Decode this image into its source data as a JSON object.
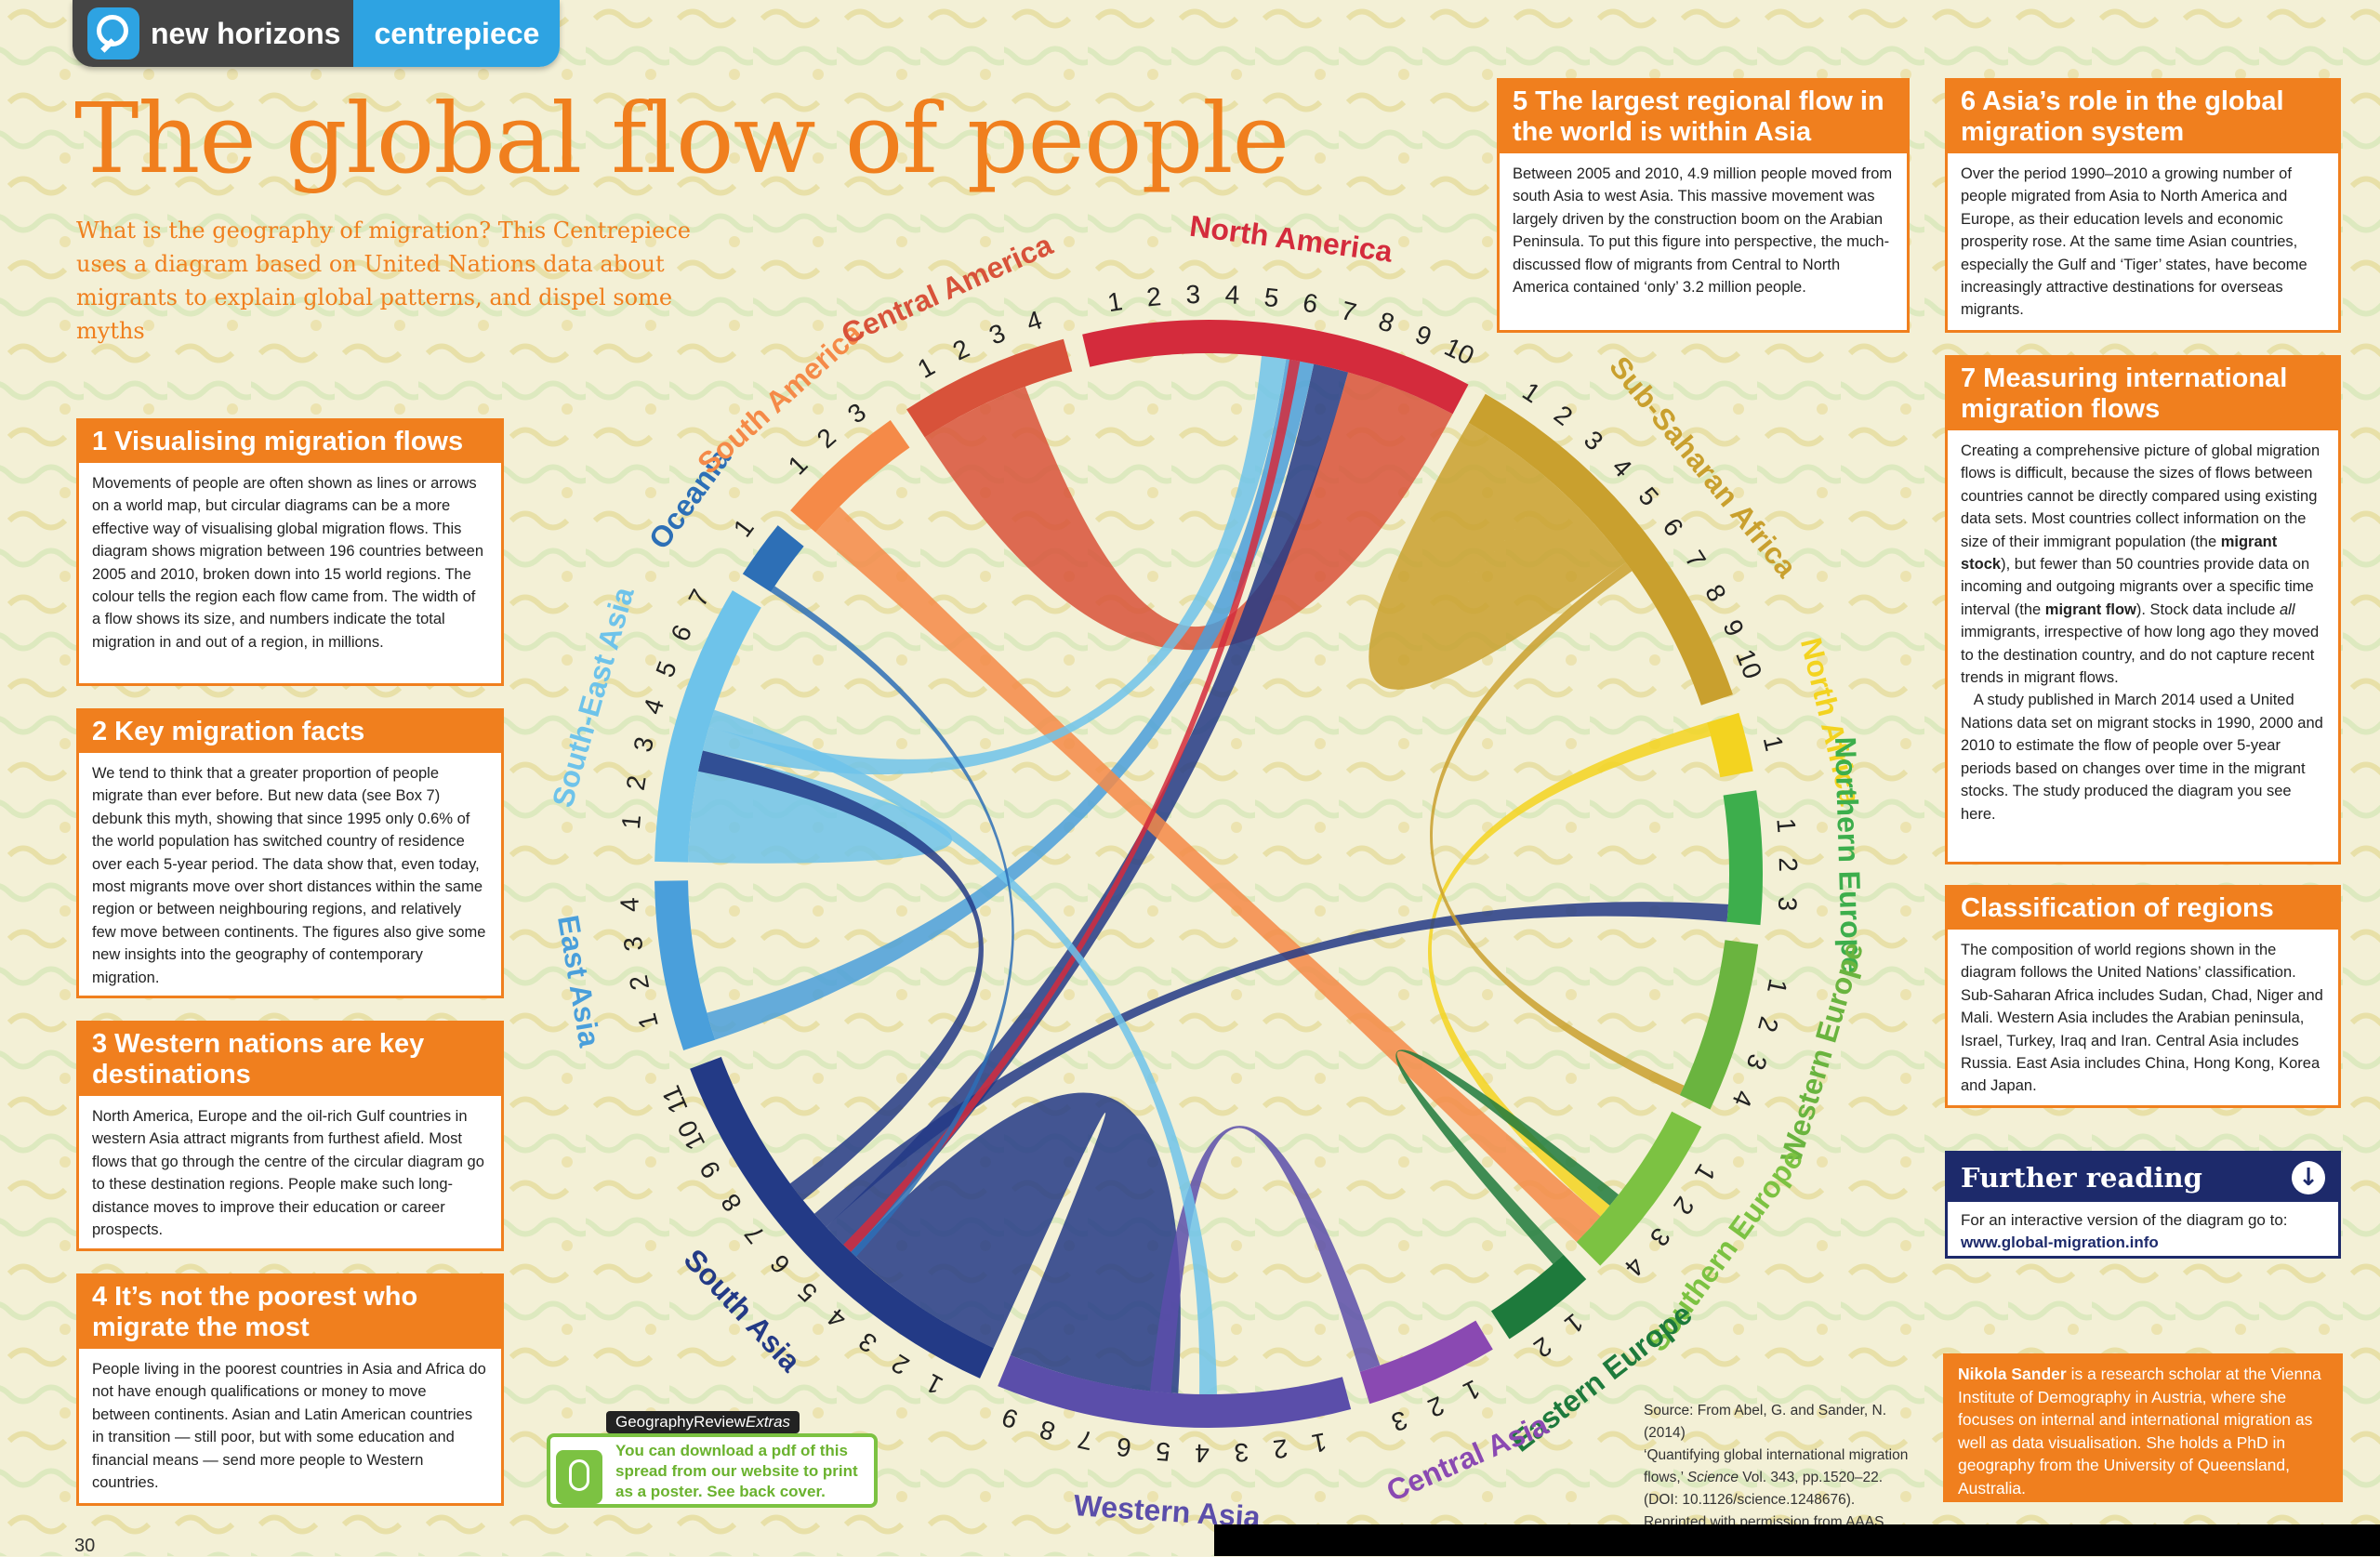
{
  "header": {
    "brand": "new horizons",
    "section": "centrepiece"
  },
  "title": "The global flow of people",
  "intro": "What is the geography of migration? This Centrepiece uses a diagram based on United Nations data about migrants to explain global patterns, and dispel some myths",
  "boxes": {
    "b1": {
      "title": "1  Visualising migration flows",
      "body": "Movements of people are often shown as lines or arrows on a world map, but circular diagrams can be a more effective way of visualising global migration flows. This diagram shows migration between 196 countries between 2005 and 2010, broken down into 15 world regions. The colour tells the region each flow came from. The width of a flow shows its size, and numbers indicate the total migration in and out of a region, in millions."
    },
    "b2": {
      "title": "2  Key migration facts",
      "body": "We tend to think that a greater proportion of people migrate than ever before. But new data (see Box 7) debunk this myth, showing that since 1995 only 0.6% of the world population has switched country of residence over each 5-year period. The data show that, even today, most migrants move over short distances within the same region or between neighbouring regions, and relatively few move between continents. The figures also give some new insights into the geography of contemporary migration."
    },
    "b3": {
      "title": "3  Western nations are key destinations",
      "body": "North America, Europe and the oil-rich Gulf countries in western Asia attract migrants from furthest afield. Most flows that go through the centre of the circular diagram go to these destination regions. People make such long-distance moves to improve their education or career prospects."
    },
    "b4": {
      "title": "4  It’s not the poorest who migrate the most",
      "body": "People living in the poorest countries in Asia and Africa do not have enough qualifications or money to move between continents. Asian and Latin American countries in transition — still poor, but with some education and financial means — send more people to Western countries."
    },
    "b5": {
      "title": "5  The largest regional flow in the world is within Asia",
      "body": "Between 2005 and 2010, 4.9 million people moved from south Asia to west Asia. This massive movement was largely driven by the construction boom on the Arabian Peninsula. To put this figure into perspective, the much-discussed flow of migrants from Central to North America contained ‘only’ 3.2 million people."
    },
    "b6": {
      "title": "6  Asia’s role in the global migration system",
      "body": "Over the period 1990–2010 a growing number of people migrated from Asia to North America and Europe, as their education levels and economic prosperity rose. At the same time Asian countries, especially the Gulf and ‘Tiger’ states, have become increasingly attractive destinations for overseas migrants."
    },
    "b7": {
      "title": "7  Measuring international migration flows",
      "p1a": "Creating a comprehensive picture of global migration flows is difficult, because the sizes of flows between countries cannot be directly compared using existing data sets. Most countries collect information on the size of their immigrant population (the ",
      "p1b": "migrant stock",
      "p1c": "), but fewer than 50 countries provide data on incoming and outgoing migrants over a specific time interval (the ",
      "p1d": "migrant flow",
      "p1e": "). Stock data include ",
      "p1f": "all",
      "p1g": " immigrants, irrespective of how long ago they moved to the destination country, and do not capture recent trends in migrant flows.",
      "p2": "A study published in March 2014 used a United Nations data set on migrant stocks in 1990, 2000 and 2010 to estimate the flow of people over 5-year periods based on changes over time in the migrant stocks. The study produced the diagram you see here."
    },
    "bc": {
      "title": "Classification of regions",
      "body": "The composition of world regions shown in the diagram follows the United Nations’ classification. Sub-Saharan Africa includes Sudan, Chad, Niger and Mali. Western Asia includes the Arabian peninsula, Israel, Turkey, Iraq and Iran. Central Asia includes Russia. East Asia includes China, Hong Kong, Korea and Japan."
    }
  },
  "further": {
    "title": "Further reading",
    "text": "For an interactive version of the diagram go to:",
    "link": "www.global-migration.info"
  },
  "author": {
    "name": "Nikola Sander",
    "text": " is a research scholar at the Vienna Institute of Demography in Austria, where she focuses on internal and international migration as well as data visualisation. She holds a PhD in geography from the University of Queensland, Australia."
  },
  "source": {
    "l1": "Source: From Abel, G. and Sander, N. (2014)",
    "l2": "‘Quantifying global international migration",
    "l3a": "flows,’ ",
    "l3b": "Science",
    "l3c": " Vol. 343, pp.1520–22.",
    "l4": "(DOI: 10.1126/science.1248676).",
    "l5": "Reprinted with permission from AAAS."
  },
  "extras": {
    "label_a": "GeographyReview",
    "label_b": "Extras",
    "text": "You can download a pdf of this spread from our website to print as a poster. See back cover."
  },
  "page_number": "30",
  "diagram": {
    "regions": [
      {
        "name": "North America",
        "color": "#d42b3c",
        "ticks": [
          "1",
          "2",
          "3",
          "4",
          "5",
          "6",
          "7",
          "8",
          "9",
          "10"
        ],
        "max": 10
      },
      {
        "name": "Sub-Saharan Africa",
        "color": "#c9a02e",
        "ticks": [
          "1",
          "2",
          "3",
          "4",
          "5",
          "6",
          "7",
          "8",
          "9",
          "10"
        ],
        "max": 10
      },
      {
        "name": "North Africa",
        "color": "#f3d320",
        "ticks": [
          "1"
        ],
        "max": 1
      },
      {
        "name": "Northern Europe",
        "color": "#3dae4c",
        "ticks": [
          "1",
          "2",
          "3"
        ],
        "max": 3
      },
      {
        "name": "Western Europe",
        "color": "#6ab43f",
        "ticks": [
          "1",
          "2",
          "3",
          "4"
        ],
        "max": 4
      },
      {
        "name": "Southern Europe",
        "color": "#7cc242",
        "ticks": [
          "1",
          "2",
          "3",
          "4"
        ],
        "max": 4
      },
      {
        "name": "Eastern Europe",
        "color": "#1e7a3c",
        "ticks": [
          "1",
          "2"
        ],
        "max": 2
      },
      {
        "name": "Central Asia",
        "color": "#8a49b2",
        "ticks": [
          "1",
          "2",
          "3"
        ],
        "max": 3
      },
      {
        "name": "Western Asia",
        "color": "#5b4eaa",
        "ticks": [
          "1",
          "2",
          "3",
          "4",
          "5",
          "6",
          "7",
          "8",
          "9"
        ],
        "max": 9
      },
      {
        "name": "South Asia",
        "color": "#233a86",
        "ticks": [
          "1",
          "2",
          "3",
          "4",
          "5",
          "6",
          "7",
          "8",
          "9",
          "10",
          "11"
        ],
        "max": 11
      },
      {
        "name": "East Asia",
        "color": "#4a9fdb",
        "ticks": [
          "1",
          "2",
          "3",
          "4"
        ],
        "max": 4
      },
      {
        "name": "South-East Asia",
        "color": "#6ec3ea",
        "ticks": [
          "1",
          "2",
          "3",
          "4",
          "5",
          "6",
          "7"
        ],
        "max": 7
      },
      {
        "name": "Oceania",
        "color": "#2d6fb6",
        "ticks": [
          "1"
        ],
        "max": 1
      },
      {
        "name": "South America",
        "color": "#f58a48",
        "ticks": [
          "1",
          "2",
          "3"
        ],
        "max": 3
      },
      {
        "name": "Central America",
        "color": "#d8523a",
        "ticks": [
          "1",
          "2",
          "3",
          "4"
        ],
        "max": 4
      }
    ],
    "flows": [
      {
        "from": "South Asia",
        "to": "Western Asia",
        "value": 4.9
      },
      {
        "from": "Central America",
        "to": "North America",
        "value": 3.2
      },
      {
        "from": "Sub-Saharan Africa",
        "to": "Sub-Saharan Africa",
        "value": 3.0
      },
      {
        "from": "South-East Asia",
        "to": "South-East Asia",
        "value": 1.6
      },
      {
        "from": "South Asia",
        "to": "North America",
        "value": 1.0
      },
      {
        "from": "East Asia",
        "to": "North America",
        "value": 0.8
      },
      {
        "from": "South America",
        "to": "Southern Europe",
        "value": 1.0
      },
      {
        "from": "South-East Asia",
        "to": "North America",
        "value": 0.7
      },
      {
        "from": "Western Asia",
        "to": "Central Asia",
        "value": 0.6
      },
      {
        "from": "North Africa",
        "to": "Southern Europe",
        "value": 0.4
      },
      {
        "from": "South Asia",
        "to": "Northern Europe",
        "value": 0.5
      },
      {
        "from": "North America",
        "to": "South Asia",
        "value": 0.3
      },
      {
        "from": "Sub-Saharan Africa",
        "to": "Western Europe",
        "value": 0.3
      },
      {
        "from": "Eastern Europe",
        "to": "Southern Europe",
        "value": 0.4
      },
      {
        "from": "South-East Asia",
        "to": "Western Asia",
        "value": 0.5
      },
      {
        "from": "Oceania",
        "to": "South Asia",
        "value": 0.2
      },
      {
        "from": "South Asia",
        "to": "South-East Asia",
        "value": 0.6
      }
    ]
  }
}
